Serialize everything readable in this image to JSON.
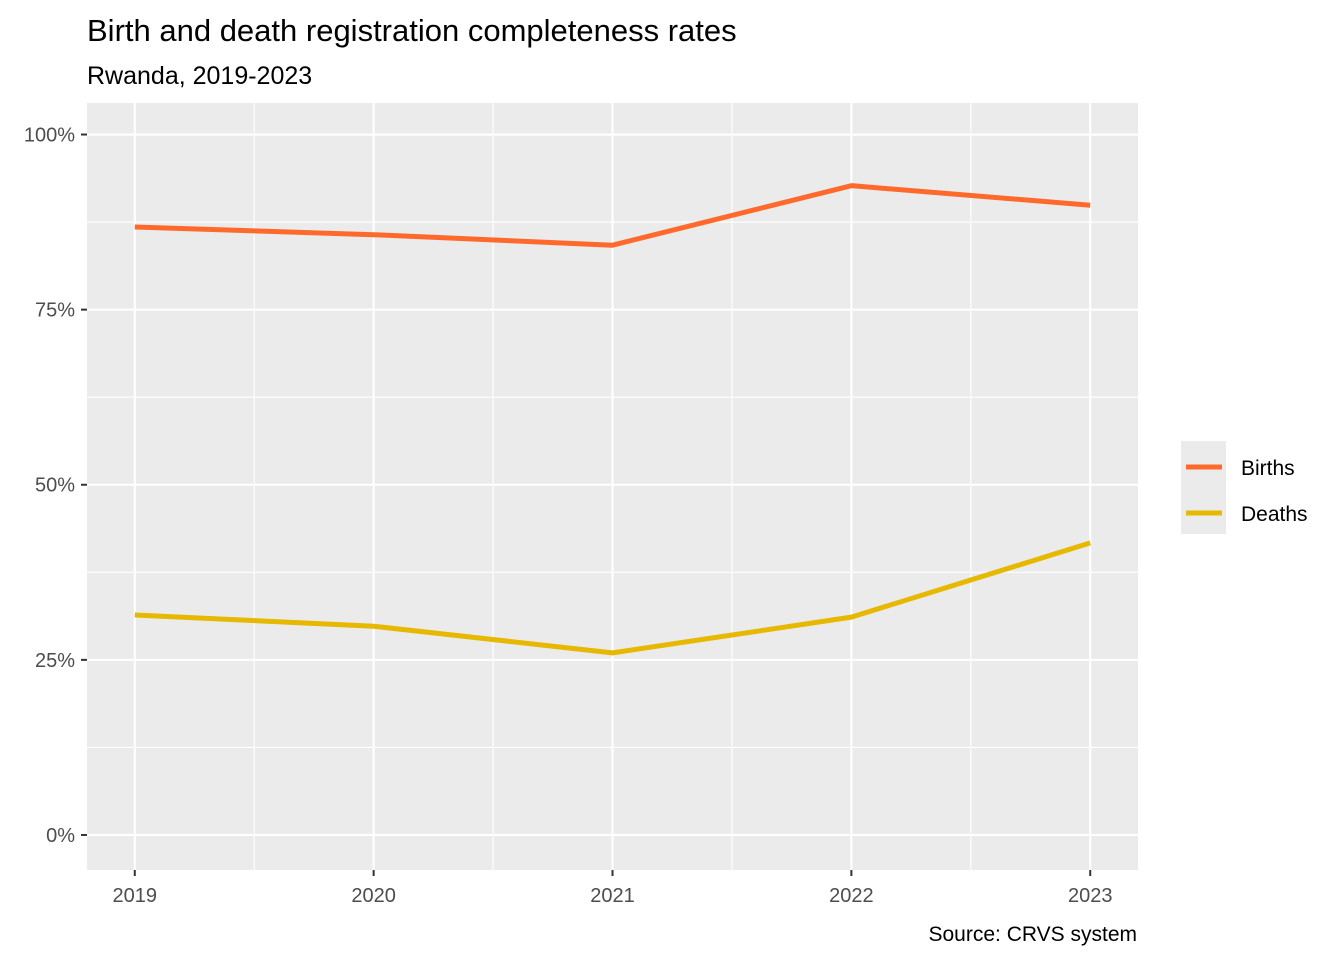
{
  "chart_data": {
    "type": "line",
    "title": "Birth and death registration completeness rates",
    "subtitle": "Rwanda, 2019-2023",
    "caption": "Source: CRVS system",
    "xlabel": "",
    "ylabel": "",
    "x": [
      2019,
      2020,
      2021,
      2022,
      2023
    ],
    "x_tick_labels": [
      "2019",
      "2020",
      "2021",
      "2022",
      "2023"
    ],
    "xlim": [
      2018.8,
      2023.2
    ],
    "ylim": [
      -0.05,
      1.045
    ],
    "y_ticks": [
      0,
      0.25,
      0.5,
      0.75,
      1.0
    ],
    "y_tick_labels": [
      "0%",
      "25%",
      "50%",
      "75%",
      "100%"
    ],
    "grid": true,
    "legend_position": "right",
    "series": [
      {
        "name": "Births",
        "color": "#FF6A2C",
        "values": [
          0.868,
          0.857,
          0.842,
          0.927,
          0.899
        ]
      },
      {
        "name": "Deaths",
        "color": "#E6B800",
        "values": [
          0.314,
          0.298,
          0.26,
          0.311,
          0.417
        ]
      }
    ]
  }
}
